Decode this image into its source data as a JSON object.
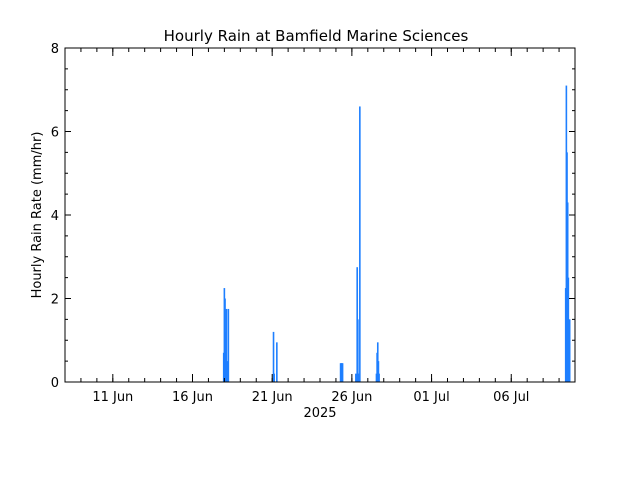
{
  "chart_data": {
    "type": "bar",
    "title": "Hourly Rain at Bamfield Marine Sciences",
    "ylabel": "Hourly Rain Rate (mm/hr)",
    "xlabel": "2025",
    "ylim": [
      0,
      8
    ],
    "y_ticks": [
      0,
      2,
      4,
      6,
      8
    ],
    "x_range_days": [
      "2025-06-08",
      "2025-07-10"
    ],
    "x_ticks": [
      {
        "date": "2025-06-11",
        "label": "11 Jun"
      },
      {
        "date": "2025-06-16",
        "label": "16 Jun"
      },
      {
        "date": "2025-06-21",
        "label": "21 Jun"
      },
      {
        "date": "2025-06-26",
        "label": "26 Jun"
      },
      {
        "date": "2025-07-01",
        "label": "01 Jul"
      },
      {
        "date": "2025-07-06",
        "label": "06 Jul"
      }
    ],
    "bar_color": "#1e7fff",
    "points": [
      {
        "t": "2025-06-17T23:00",
        "v": 0.7
      },
      {
        "t": "2025-06-18T00:00",
        "v": 2.25
      },
      {
        "t": "2025-06-18T01:00",
        "v": 2.0
      },
      {
        "t": "2025-06-18T02:00",
        "v": 1.2
      },
      {
        "t": "2025-06-18T03:00",
        "v": 1.75
      },
      {
        "t": "2025-06-18T04:00",
        "v": 0.3
      },
      {
        "t": "2025-06-18T05:00",
        "v": 0.5
      },
      {
        "t": "2025-06-18T06:00",
        "v": 1.75
      },
      {
        "t": "2025-06-21T02:00",
        "v": 1.2
      },
      {
        "t": "2025-06-21T03:00",
        "v": 0.2
      },
      {
        "t": "2025-06-21T07:00",
        "v": 0.95
      },
      {
        "t": "2025-06-25T07:00",
        "v": 0.45
      },
      {
        "t": "2025-06-25T08:00",
        "v": 0.45
      },
      {
        "t": "2025-06-25T09:00",
        "v": 0.45
      },
      {
        "t": "2025-06-25T10:00",
        "v": 0.45
      },
      {
        "t": "2025-06-26T06:00",
        "v": 0.2
      },
      {
        "t": "2025-06-26T08:00",
        "v": 2.75
      },
      {
        "t": "2025-06-26T09:00",
        "v": 1.5
      },
      {
        "t": "2025-06-26T10:00",
        "v": 0.2
      },
      {
        "t": "2025-06-26T11:00",
        "v": 0.2
      },
      {
        "t": "2025-06-26T12:00",
        "v": 6.6
      },
      {
        "t": "2025-06-27T13:00",
        "v": 0.2
      },
      {
        "t": "2025-06-27T14:00",
        "v": 0.7
      },
      {
        "t": "2025-06-27T15:00",
        "v": 0.95
      },
      {
        "t": "2025-06-27T16:00",
        "v": 0.5
      },
      {
        "t": "2025-06-27T17:00",
        "v": 0.2
      },
      {
        "t": "2025-07-09T10:00",
        "v": 2.25
      },
      {
        "t": "2025-07-09T11:00",
        "v": 7.1
      },
      {
        "t": "2025-07-09T12:00",
        "v": 5.5
      },
      {
        "t": "2025-07-09T13:00",
        "v": 4.3
      },
      {
        "t": "2025-07-09T14:00",
        "v": 2.5
      },
      {
        "t": "2025-07-09T15:00",
        "v": 1.5
      },
      {
        "t": "2025-07-09T16:00",
        "v": 1.5
      }
    ]
  }
}
